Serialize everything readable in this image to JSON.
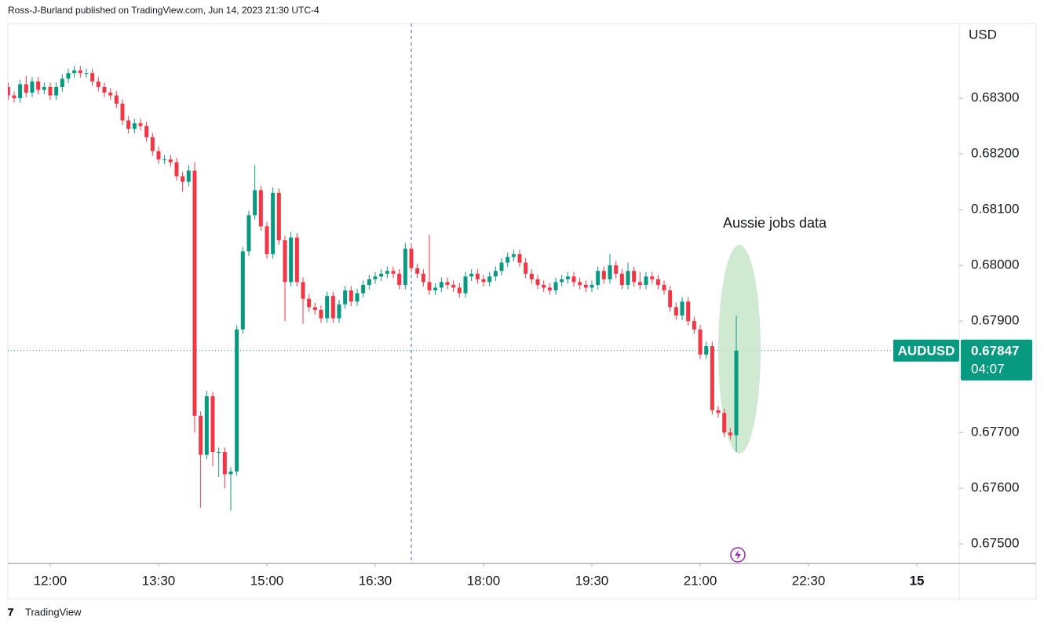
{
  "chart_data": {
    "type": "candlestick",
    "header": "Ross-J-Burland published on TradingView.com, Jun 14, 2023 21:30 UTC-4",
    "currency": "USD",
    "annotation": "Aussie jobs data",
    "symbol": "AUDUSD",
    "last_price": {
      "value": 0.67847,
      "label": "0.67847"
    },
    "countdown": "04:07",
    "brand": "TradingView",
    "up_color": "#089981",
    "down_color": "#f23645",
    "session_break": 1020,
    "xlim": [
      684.8,
      1475.2
    ],
    "xticks": [
      {
        "value": 720,
        "label": "12:00"
      },
      {
        "value": 810,
        "label": "13:30"
      },
      {
        "value": 900,
        "label": "15:00"
      },
      {
        "value": 990,
        "label": "16:30"
      },
      {
        "value": 1080,
        "label": "18:00"
      },
      {
        "value": 1170,
        "label": "19:30"
      },
      {
        "value": 1260,
        "label": "21:00"
      },
      {
        "value": 1350,
        "label": "22:30"
      },
      {
        "value": 1440,
        "label": "15"
      }
    ],
    "ylim": [
      0.67465,
      0.68434
    ],
    "yticks": [
      {
        "value": 0.675,
        "label": "0.67500"
      },
      {
        "value": 0.676,
        "label": "0.67600"
      },
      {
        "value": 0.677,
        "label": "0.67700"
      },
      {
        "value": 0.678,
        "label": "0.67800"
      },
      {
        "value": 0.679,
        "label": "0.67900"
      },
      {
        "value": 0.68,
        "label": "0.68000"
      },
      {
        "value": 0.681,
        "label": "0.68100"
      },
      {
        "value": 0.682,
        "label": "0.68200"
      },
      {
        "value": 0.683,
        "label": "0.68300"
      }
    ],
    "x": [
      685,
      690,
      695,
      700,
      705,
      710,
      715,
      720,
      725,
      730,
      735,
      740,
      745,
      750,
      755,
      760,
      765,
      770,
      775,
      780,
      785,
      790,
      795,
      800,
      805,
      810,
      815,
      820,
      825,
      830,
      835,
      840,
      845,
      850,
      855,
      860,
      865,
      870,
      875,
      880,
      885,
      890,
      895,
      900,
      905,
      910,
      915,
      920,
      925,
      930,
      935,
      940,
      945,
      950,
      955,
      960,
      965,
      970,
      975,
      980,
      985,
      990,
      995,
      1000,
      1005,
      1010,
      1015,
      1020,
      1025,
      1030,
      1035,
      1040,
      1045,
      1050,
      1055,
      1060,
      1065,
      1070,
      1075,
      1080,
      1085,
      1090,
      1095,
      1100,
      1105,
      1110,
      1115,
      1120,
      1125,
      1130,
      1135,
      1140,
      1145,
      1150,
      1155,
      1160,
      1165,
      1170,
      1175,
      1180,
      1185,
      1190,
      1195,
      1200,
      1205,
      1210,
      1215,
      1220,
      1225,
      1230,
      1235,
      1240,
      1245,
      1250,
      1255,
      1260,
      1265,
      1270,
      1275,
      1280,
      1285,
      1290
    ],
    "ohlc": [
      [
        0.6832,
        0.68328,
        0.68297,
        0.68305
      ],
      [
        0.68305,
        0.68312,
        0.68292,
        0.683
      ],
      [
        0.683,
        0.68333,
        0.68292,
        0.68325
      ],
      [
        0.68325,
        0.6834,
        0.68302,
        0.6831
      ],
      [
        0.6831,
        0.68338,
        0.68302,
        0.6833
      ],
      [
        0.6833,
        0.68338,
        0.68307,
        0.68315
      ],
      [
        0.68315,
        0.68328,
        0.68307,
        0.6832
      ],
      [
        0.6832,
        0.68328,
        0.68297,
        0.68305
      ],
      [
        0.68305,
        0.68328,
        0.68297,
        0.6832
      ],
      [
        0.6832,
        0.68343,
        0.68312,
        0.68335
      ],
      [
        0.68335,
        0.68353,
        0.68327,
        0.68345
      ],
      [
        0.68345,
        0.68358,
        0.68337,
        0.6835
      ],
      [
        0.6835,
        0.68358,
        0.68337,
        0.68345
      ],
      [
        0.68345,
        0.68353,
        0.68337,
        0.68345
      ],
      [
        0.68345,
        0.68353,
        0.68322,
        0.6833
      ],
      [
        0.6833,
        0.68338,
        0.68312,
        0.6832
      ],
      [
        0.6832,
        0.68328,
        0.68302,
        0.6831
      ],
      [
        0.6831,
        0.68318,
        0.68297,
        0.68305
      ],
      [
        0.68305,
        0.68313,
        0.68282,
        0.6829
      ],
      [
        0.6829,
        0.68298,
        0.68252,
        0.6826
      ],
      [
        0.6826,
        0.68268,
        0.68237,
        0.68245
      ],
      [
        0.68245,
        0.68263,
        0.68237,
        0.68255
      ],
      [
        0.68255,
        0.68263,
        0.68242,
        0.6825
      ],
      [
        0.6825,
        0.68258,
        0.68222,
        0.6823
      ],
      [
        0.6823,
        0.68238,
        0.68197,
        0.68205
      ],
      [
        0.68205,
        0.68213,
        0.68182,
        0.6819
      ],
      [
        0.6819,
        0.68198,
        0.68182,
        0.6819
      ],
      [
        0.6819,
        0.68198,
        0.68177,
        0.68185
      ],
      [
        0.68185,
        0.68193,
        0.68152,
        0.6816
      ],
      [
        0.6816,
        0.68168,
        0.68132,
        0.6815
      ],
      [
        0.6815,
        0.6818,
        0.68142,
        0.6817
      ],
      [
        0.6817,
        0.68185,
        0.677,
        0.6773
      ],
      [
        0.6773,
        0.67738,
        0.67565,
        0.6766
      ],
      [
        0.6766,
        0.67775,
        0.67652,
        0.67765
      ],
      [
        0.67765,
        0.67773,
        0.6764,
        0.67665
      ],
      [
        0.67665,
        0.67673,
        0.6762,
        0.67665
      ],
      [
        0.67665,
        0.67673,
        0.676,
        0.67625
      ],
      [
        0.67625,
        0.67638,
        0.6756,
        0.6763
      ],
      [
        0.6763,
        0.67893,
        0.67622,
        0.67885
      ],
      [
        0.67885,
        0.68033,
        0.67877,
        0.68025
      ],
      [
        0.68025,
        0.68098,
        0.68017,
        0.6809
      ],
      [
        0.6809,
        0.6818,
        0.68082,
        0.68135
      ],
      [
        0.68135,
        0.68143,
        0.68062,
        0.6807
      ],
      [
        0.6807,
        0.68078,
        0.68012,
        0.6802
      ],
      [
        0.6802,
        0.6814,
        0.68012,
        0.6813
      ],
      [
        0.6813,
        0.68138,
        0.68037,
        0.68045
      ],
      [
        0.68045,
        0.68053,
        0.679,
        0.6797
      ],
      [
        0.6797,
        0.6806,
        0.67962,
        0.6805
      ],
      [
        0.6805,
        0.68058,
        0.67962,
        0.6797
      ],
      [
        0.6797,
        0.67978,
        0.67895,
        0.6794
      ],
      [
        0.6794,
        0.67948,
        0.67917,
        0.67925
      ],
      [
        0.67925,
        0.67933,
        0.67912,
        0.6792
      ],
      [
        0.6792,
        0.67928,
        0.67897,
        0.67905
      ],
      [
        0.67905,
        0.67953,
        0.67897,
        0.67945
      ],
      [
        0.67945,
        0.67953,
        0.67897,
        0.67905
      ],
      [
        0.67905,
        0.67938,
        0.67897,
        0.6793
      ],
      [
        0.6793,
        0.67963,
        0.67922,
        0.67955
      ],
      [
        0.67955,
        0.67963,
        0.67927,
        0.67935
      ],
      [
        0.67935,
        0.67958,
        0.67927,
        0.6795
      ],
      [
        0.6795,
        0.67973,
        0.67942,
        0.67965
      ],
      [
        0.67965,
        0.67983,
        0.67957,
        0.67975
      ],
      [
        0.67975,
        0.67988,
        0.67967,
        0.6798
      ],
      [
        0.6798,
        0.67993,
        0.67972,
        0.67985
      ],
      [
        0.67985,
        0.67998,
        0.67977,
        0.6799
      ],
      [
        0.6799,
        0.67998,
        0.67977,
        0.67985
      ],
      [
        0.67985,
        0.67993,
        0.67957,
        0.67965
      ],
      [
        0.67965,
        0.6804,
        0.67957,
        0.6803
      ],
      [
        0.6803,
        0.68038,
        0.67987,
        0.67995
      ],
      [
        0.67995,
        0.68003,
        0.67977,
        0.67985
      ],
      [
        0.67985,
        0.67993,
        0.67962,
        0.6797
      ],
      [
        0.6797,
        0.68055,
        0.67947,
        0.67955
      ],
      [
        0.67955,
        0.67968,
        0.67947,
        0.6796
      ],
      [
        0.6796,
        0.67978,
        0.67952,
        0.6797
      ],
      [
        0.6797,
        0.67978,
        0.67957,
        0.67965
      ],
      [
        0.67965,
        0.67973,
        0.67952,
        0.6796
      ],
      [
        0.6796,
        0.67968,
        0.67942,
        0.6795
      ],
      [
        0.6795,
        0.67988,
        0.67942,
        0.6798
      ],
      [
        0.6798,
        0.67993,
        0.67972,
        0.67985
      ],
      [
        0.67985,
        0.67993,
        0.67967,
        0.67975
      ],
      [
        0.67975,
        0.67983,
        0.67962,
        0.6797
      ],
      [
        0.6797,
        0.67988,
        0.67962,
        0.6798
      ],
      [
        0.6798,
        0.67998,
        0.67972,
        0.6799
      ],
      [
        0.6799,
        0.68013,
        0.67982,
        0.68005
      ],
      [
        0.68005,
        0.68023,
        0.67997,
        0.68015
      ],
      [
        0.68015,
        0.68028,
        0.68007,
        0.6802
      ],
      [
        0.6802,
        0.68028,
        0.67997,
        0.68005
      ],
      [
        0.68005,
        0.68013,
        0.67977,
        0.67985
      ],
      [
        0.67985,
        0.67993,
        0.67967,
        0.67975
      ],
      [
        0.67975,
        0.67983,
        0.67957,
        0.67965
      ],
      [
        0.67965,
        0.67973,
        0.67952,
        0.6796
      ],
      [
        0.6796,
        0.67968,
        0.67947,
        0.67955
      ],
      [
        0.67955,
        0.67978,
        0.67947,
        0.6797
      ],
      [
        0.6797,
        0.67983,
        0.67962,
        0.67975
      ],
      [
        0.67975,
        0.67988,
        0.67967,
        0.6798
      ],
      [
        0.6798,
        0.67988,
        0.67962,
        0.6797
      ],
      [
        0.6797,
        0.67978,
        0.67957,
        0.67965
      ],
      [
        0.67965,
        0.67973,
        0.67952,
        0.6796
      ],
      [
        0.6796,
        0.67973,
        0.67952,
        0.67965
      ],
      [
        0.67965,
        0.67998,
        0.67957,
        0.6799
      ],
      [
        0.6799,
        0.67998,
        0.67967,
        0.67975
      ],
      [
        0.67975,
        0.6802,
        0.67967,
        0.68
      ],
      [
        0.68,
        0.68008,
        0.67977,
        0.67985
      ],
      [
        0.67985,
        0.67993,
        0.67957,
        0.67965
      ],
      [
        0.67965,
        0.68005,
        0.67957,
        0.6799
      ],
      [
        0.6799,
        0.67998,
        0.67962,
        0.6797
      ],
      [
        0.6797,
        0.67988,
        0.67957,
        0.67965
      ],
      [
        0.67965,
        0.67988,
        0.67957,
        0.6798
      ],
      [
        0.6798,
        0.67988,
        0.67967,
        0.67975
      ],
      [
        0.67975,
        0.67983,
        0.67957,
        0.67965
      ],
      [
        0.67965,
        0.67973,
        0.67947,
        0.67955
      ],
      [
        0.67955,
        0.67963,
        0.67917,
        0.67925
      ],
      [
        0.67925,
        0.67933,
        0.67902,
        0.6791
      ],
      [
        0.6791,
        0.67943,
        0.67902,
        0.67935
      ],
      [
        0.67935,
        0.67943,
        0.67892,
        0.679
      ],
      [
        0.679,
        0.67908,
        0.67877,
        0.67885
      ],
      [
        0.67885,
        0.67893,
        0.67832,
        0.6784
      ],
      [
        0.6784,
        0.67863,
        0.67832,
        0.67855
      ],
      [
        0.67855,
        0.67863,
        0.67732,
        0.6774
      ],
      [
        0.6774,
        0.67748,
        0.67727,
        0.67735
      ],
      [
        0.67735,
        0.67743,
        0.67692,
        0.677
      ],
      [
        0.677,
        0.67708,
        0.67687,
        0.67695
      ],
      [
        0.67695,
        0.6791,
        0.67665,
        0.67847
      ]
    ]
  }
}
